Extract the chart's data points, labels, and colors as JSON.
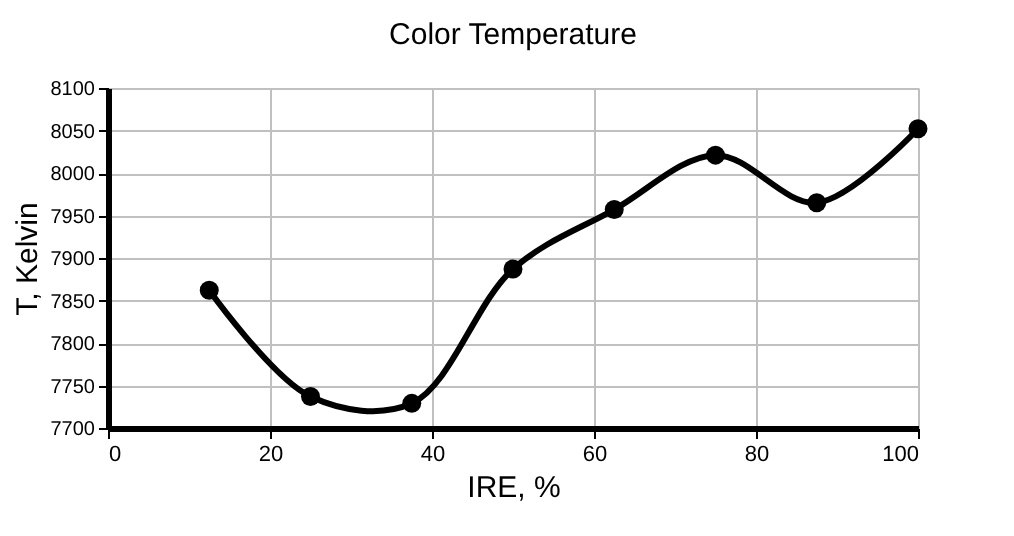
{
  "chart_data": {
    "type": "line",
    "title": "Color Temperature",
    "xlabel": "IRE, %",
    "ylabel": "T, Kelvin",
    "x": [
      12.5,
      25,
      37.5,
      50,
      62.5,
      75,
      87.5,
      100
    ],
    "series": [
      {
        "color": "#000000",
        "values": [
          7862,
          7737,
          7729,
          7887,
          7957,
          8021,
          7965,
          8052
        ]
      }
    ],
    "xlim": [
      0,
      100
    ],
    "xticks": [
      0,
      20,
      40,
      60,
      80,
      100
    ],
    "ylim": [
      7700,
      8100
    ],
    "yticks": [
      7700,
      7750,
      7800,
      7850,
      7900,
      7950,
      8000,
      8050,
      8100
    ],
    "grid": true,
    "marker": "circle",
    "line_style": "solid"
  }
}
